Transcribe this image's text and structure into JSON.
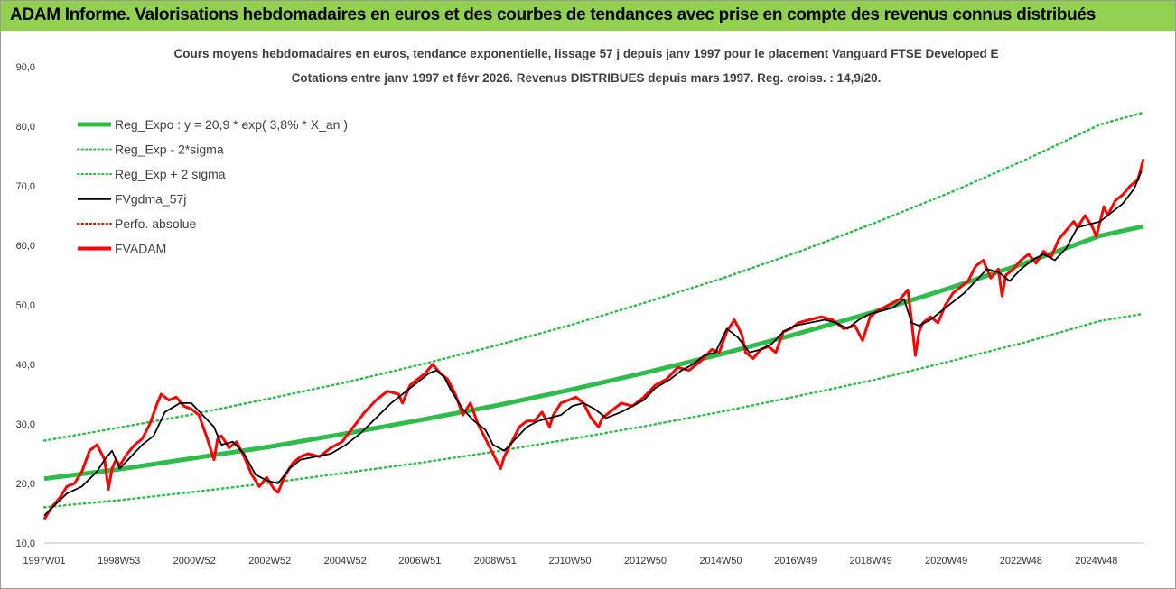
{
  "banner": {
    "title": "ADAM Informe. Valorisations hebdomadaires en euros et des courbes de tendances avec prise en compte des revenus connus distribués",
    "background": "#92d050"
  },
  "chart_data": {
    "type": "line",
    "title": "Cours moyens hebdomadaires en euros, tendance exponentielle, lissage 57 j depuis janv 1997  pour le placement Vanguard FTSE Developed E",
    "subtitle": "Cotations entre janv 1997 et févr 2026. Revenus DISTRIBUES depuis mars 1997. Reg. croiss. : 14,9/20.",
    "ylim": [
      10,
      90
    ],
    "xlim": [
      1997.0,
      2026.15
    ],
    "y_ticks": [
      "10,0",
      "20,0",
      "30,0",
      "40,0",
      "50,0",
      "60,0",
      "70,0",
      "80,0",
      "90,0"
    ],
    "x_ticks": [
      {
        "label": "1997W01",
        "t": 1997.0
      },
      {
        "label": "1998W53",
        "t": 1998.98
      },
      {
        "label": "2000W52",
        "t": 2000.98
      },
      {
        "label": "2002W52",
        "t": 2002.98
      },
      {
        "label": "2004W52",
        "t": 2004.98
      },
      {
        "label": "2006W51",
        "t": 2006.96
      },
      {
        "label": "2008W51",
        "t": 2008.96
      },
      {
        "label": "2010W50",
        "t": 2010.94
      },
      {
        "label": "2012W50",
        "t": 2012.94
      },
      {
        "label": "2014W50",
        "t": 2014.94
      },
      {
        "label": "2016W49",
        "t": 2016.92
      },
      {
        "label": "2018W49",
        "t": 2018.92
      },
      {
        "label": "2020W49",
        "t": 2020.92
      },
      {
        "label": "2022W48",
        "t": 2022.9
      },
      {
        "label": "2024W48",
        "t": 2024.9
      }
    ],
    "grid": false,
    "legend_position": "top-left",
    "legend": [
      {
        "name": "Reg_Expo : y = 20,9 * exp( 3,8% *  X_an )",
        "color": "#2ebd4a",
        "style": "solid-thick"
      },
      {
        "name": "Reg_Exp - 2*sigma",
        "color": "#2ebd4a",
        "style": "dotted"
      },
      {
        "name": "Reg_Exp + 2 sigma",
        "color": "#2ebd4a",
        "style": "dotted"
      },
      {
        "name": "FVgdma_57j",
        "color": "#000000",
        "style": "solid"
      },
      {
        "name": "Perfo. absolue",
        "color": "#e00000",
        "style": "dotted"
      },
      {
        "name": "FVADAM",
        "color": "#ff0000",
        "style": "solid-thick"
      }
    ],
    "series": [
      {
        "name": "Reg_Expo : y = 20,9 * exp( 3,8% *  X_an )",
        "color": "#2ebd4a",
        "x": [
          1997.0,
          1999.0,
          2001.0,
          2003.0,
          2005.0,
          2007.0,
          2009.0,
          2011.0,
          2013.0,
          2015.0,
          2017.0,
          2019.0,
          2021.0,
          2023.0,
          2025.0,
          2026.15
        ],
        "values": [
          20.8,
          22.4,
          24.3,
          26.2,
          28.4,
          30.7,
          33.1,
          35.8,
          38.7,
          41.8,
          45.2,
          48.8,
          52.8,
          57.0,
          61.6,
          63.2
        ]
      },
      {
        "name": "Reg_Exp - 2*sigma",
        "color": "#2ebd4a",
        "x": [
          1997.0,
          1999.0,
          2001.0,
          2003.0,
          2005.0,
          2007.0,
          2009.0,
          2011.0,
          2013.0,
          2015.0,
          2017.0,
          2019.0,
          2021.0,
          2023.0,
          2025.0,
          2026.15
        ],
        "values": [
          16.0,
          17.2,
          18.6,
          20.1,
          21.8,
          23.5,
          25.4,
          27.5,
          29.7,
          32.1,
          34.7,
          37.4,
          40.5,
          43.7,
          47.3,
          48.5
        ]
      },
      {
        "name": "Reg_Exp + 2 sigma",
        "color": "#2ebd4a",
        "x": [
          1997.0,
          1999.0,
          2001.0,
          2003.0,
          2005.0,
          2007.0,
          2009.0,
          2011.0,
          2013.0,
          2015.0,
          2017.0,
          2019.0,
          2021.0,
          2023.0,
          2025.0,
          2026.15
        ],
        "values": [
          27.2,
          29.4,
          31.7,
          34.3,
          37.0,
          40.0,
          43.2,
          46.7,
          50.5,
          54.5,
          58.9,
          63.7,
          68.8,
          74.3,
          80.3,
          82.3
        ]
      },
      {
        "name": "FVgdma_57j",
        "color": "#000000",
        "x": [
          1997.0,
          1997.3,
          1997.6,
          1998.0,
          1998.4,
          1998.6,
          1998.8,
          1999.0,
          1999.3,
          1999.6,
          1999.9,
          2000.2,
          2000.6,
          2000.9,
          2001.2,
          2001.5,
          2001.7,
          2002.0,
          2002.3,
          2002.6,
          2002.9,
          2003.2,
          2003.5,
          2003.8,
          2004.2,
          2004.6,
          2005.0,
          2005.4,
          2005.8,
          2006.2,
          2006.6,
          2006.9,
          2007.2,
          2007.4,
          2007.6,
          2007.8,
          2008.1,
          2008.4,
          2008.7,
          2008.9,
          2009.2,
          2009.5,
          2009.8,
          2010.1,
          2010.4,
          2010.7,
          2011.0,
          2011.3,
          2011.6,
          2011.9,
          2012.3,
          2012.6,
          2012.9,
          2013.2,
          2013.6,
          2013.9,
          2014.2,
          2014.5,
          2014.8,
          2015.1,
          2015.4,
          2015.7,
          2016.0,
          2016.3,
          2016.6,
          2016.9,
          2017.3,
          2017.7,
          2018.0,
          2018.3,
          2018.6,
          2018.9,
          2019.2,
          2019.5,
          2019.8,
          2020.0,
          2020.2,
          2020.5,
          2020.8,
          2021.1,
          2021.4,
          2021.7,
          2022.0,
          2022.3,
          2022.6,
          2022.9,
          2023.2,
          2023.5,
          2023.8,
          2024.1,
          2024.4,
          2024.7,
          2025.0,
          2025.3,
          2025.6,
          2025.9,
          2026.1
        ],
        "values": [
          14.6,
          16.5,
          18.3,
          19.5,
          22.0,
          24.0,
          25.5,
          22.5,
          24.5,
          26.5,
          28.0,
          32.0,
          33.5,
          33.5,
          31.5,
          29.5,
          26.5,
          27.0,
          25.0,
          21.5,
          20.5,
          20.0,
          22.5,
          24.0,
          24.5,
          25.0,
          26.5,
          28.5,
          31.0,
          33.5,
          35.5,
          37.0,
          38.5,
          39.0,
          38.0,
          35.5,
          32.5,
          30.5,
          29.0,
          26.5,
          25.5,
          27.5,
          29.5,
          30.5,
          31.0,
          31.5,
          33.0,
          33.5,
          32.5,
          31.0,
          32.0,
          33.0,
          34.0,
          36.0,
          37.5,
          39.0,
          40.0,
          41.5,
          42.0,
          46.0,
          44.5,
          42.0,
          42.5,
          43.5,
          45.5,
          46.5,
          47.0,
          47.5,
          47.0,
          46.0,
          47.5,
          48.5,
          49.0,
          49.5,
          51.0,
          47.0,
          46.5,
          47.5,
          49.0,
          50.5,
          52.0,
          54.0,
          56.0,
          55.5,
          54.0,
          56.0,
          57.5,
          58.5,
          57.5,
          59.5,
          63.0,
          63.5,
          64.0,
          65.5,
          67.0,
          69.5,
          72.5
        ]
      },
      {
        "name": "FVADAM",
        "color": "#ff0000",
        "x": [
          1997.0,
          1997.2,
          1997.4,
          1997.6,
          1997.8,
          1998.0,
          1998.2,
          1998.4,
          1998.6,
          1998.7,
          1998.8,
          1998.9,
          1999.0,
          1999.2,
          1999.4,
          1999.6,
          1999.8,
          2000.0,
          2000.1,
          2000.3,
          2000.5,
          2000.7,
          2000.9,
          2001.1,
          2001.3,
          2001.5,
          2001.6,
          2001.7,
          2001.9,
          2002.1,
          2002.3,
          2002.5,
          2002.7,
          2002.9,
          2003.1,
          2003.2,
          2003.4,
          2003.6,
          2003.8,
          2004.0,
          2004.3,
          2004.6,
          2004.9,
          2005.2,
          2005.5,
          2005.8,
          2006.1,
          2006.4,
          2006.5,
          2006.7,
          2006.9,
          2007.1,
          2007.3,
          2007.5,
          2007.7,
          2007.9,
          2008.1,
          2008.3,
          2008.5,
          2008.7,
          2008.9,
          2009.1,
          2009.2,
          2009.4,
          2009.6,
          2009.8,
          2010.0,
          2010.2,
          2010.4,
          2010.5,
          2010.7,
          2010.9,
          2011.1,
          2011.3,
          2011.5,
          2011.7,
          2011.8,
          2012.0,
          2012.3,
          2012.6,
          2012.9,
          2013.2,
          2013.5,
          2013.8,
          2014.1,
          2014.4,
          2014.7,
          2014.9,
          2015.1,
          2015.3,
          2015.5,
          2015.6,
          2015.8,
          2016.0,
          2016.2,
          2016.4,
          2016.6,
          2016.8,
          2017.0,
          2017.3,
          2017.6,
          2017.9,
          2018.2,
          2018.5,
          2018.7,
          2018.9,
          2019.1,
          2019.4,
          2019.7,
          2019.9,
          2020.0,
          2020.1,
          2020.2,
          2020.3,
          2020.5,
          2020.7,
          2020.9,
          2021.1,
          2021.3,
          2021.5,
          2021.7,
          2021.9,
          2022.1,
          2022.3,
          2022.4,
          2022.5,
          2022.7,
          2022.9,
          2023.1,
          2023.3,
          2023.5,
          2023.7,
          2023.9,
          2024.1,
          2024.3,
          2024.4,
          2024.6,
          2024.8,
          2024.9,
          2025.1,
          2025.2,
          2025.4,
          2025.6,
          2025.8,
          2026.0,
          2026.15
        ],
        "values": [
          14.0,
          16.0,
          17.5,
          19.5,
          20.0,
          22.0,
          25.5,
          26.5,
          24.0,
          19.0,
          22.5,
          24.0,
          23.0,
          25.0,
          26.5,
          27.5,
          30.0,
          33.5,
          35.0,
          34.0,
          34.5,
          33.0,
          32.5,
          31.5,
          28.0,
          24.0,
          27.5,
          28.0,
          26.0,
          27.0,
          24.5,
          21.5,
          19.5,
          21.0,
          19.0,
          18.5,
          21.5,
          23.5,
          24.5,
          25.0,
          24.5,
          26.0,
          27.0,
          29.5,
          32.0,
          34.0,
          35.5,
          35.0,
          33.5,
          36.5,
          37.5,
          38.5,
          40.0,
          38.5,
          37.5,
          35.0,
          31.5,
          33.5,
          30.0,
          27.5,
          25.0,
          22.5,
          24.5,
          27.0,
          29.5,
          30.5,
          30.5,
          32.0,
          29.5,
          31.5,
          33.5,
          34.0,
          34.5,
          33.5,
          31.0,
          29.5,
          31.0,
          32.0,
          33.5,
          33.0,
          34.5,
          36.5,
          37.5,
          39.5,
          39.0,
          40.5,
          42.5,
          42.0,
          45.5,
          47.5,
          45.0,
          42.0,
          41.0,
          42.5,
          43.0,
          42.0,
          45.5,
          46.0,
          47.0,
          47.5,
          48.0,
          47.5,
          46.0,
          46.5,
          44.0,
          48.0,
          49.0,
          50.0,
          51.0,
          52.5,
          47.5,
          41.5,
          45.5,
          47.0,
          48.0,
          47.0,
          50.0,
          52.0,
          53.0,
          54.0,
          56.5,
          57.5,
          54.5,
          56.0,
          51.5,
          55.0,
          56.0,
          57.5,
          58.5,
          57.0,
          59.0,
          58.0,
          61.0,
          62.5,
          64.0,
          63.0,
          65.0,
          63.0,
          61.5,
          66.5,
          65.0,
          67.5,
          68.5,
          70.0,
          71.0,
          74.5
        ]
      }
    ]
  }
}
